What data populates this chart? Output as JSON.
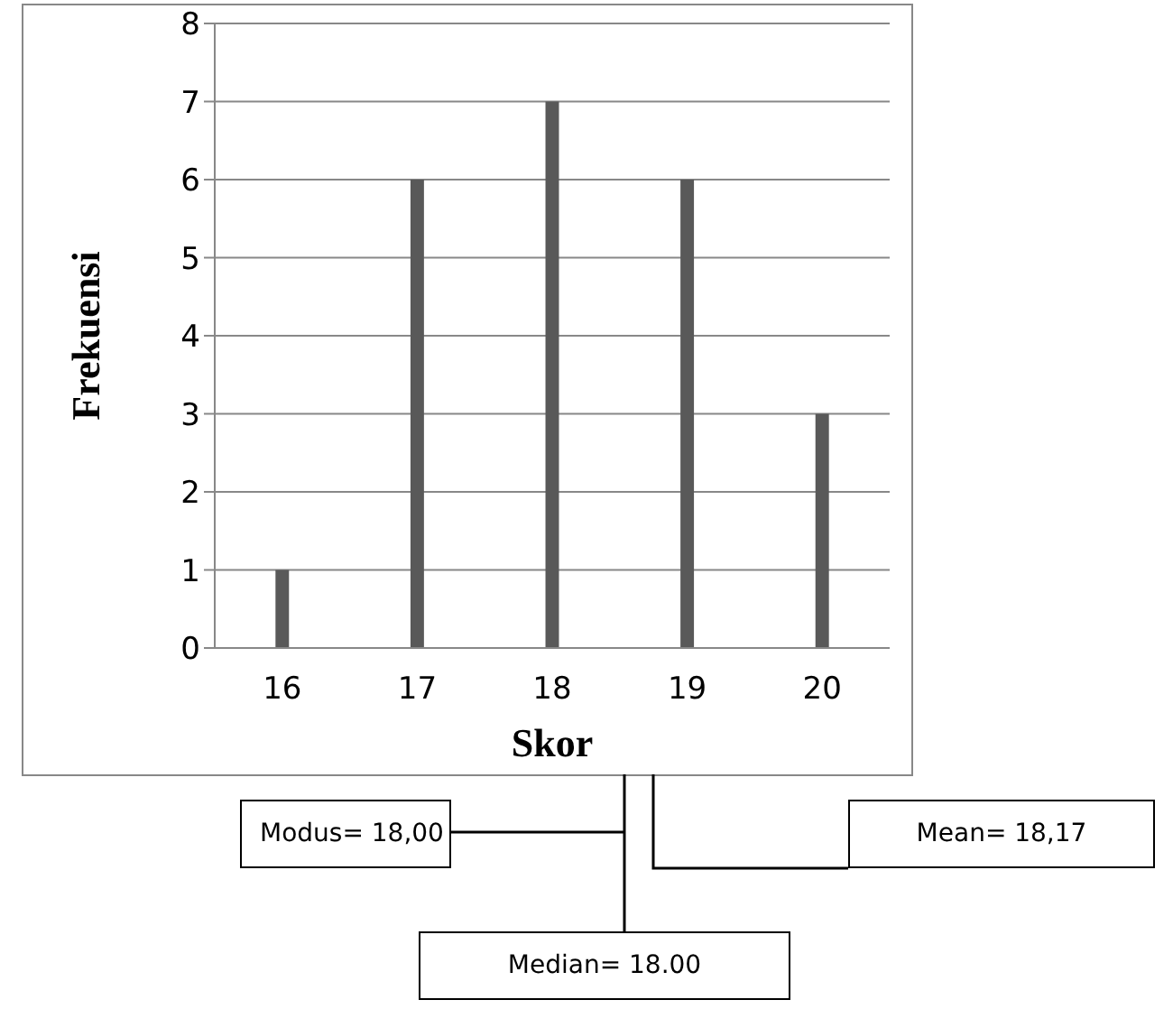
{
  "chart_data": {
    "type": "bar",
    "xlabel": "Skor",
    "ylabel": "Frekuensi",
    "categories": [
      "16",
      "17",
      "18",
      "19",
      "20"
    ],
    "values": [
      1,
      6,
      7,
      6,
      3
    ],
    "color": "#595959",
    "ylim": [
      0,
      8
    ],
    "yticks": [
      0,
      1,
      2,
      3,
      4,
      5,
      6,
      7,
      8
    ],
    "grid": "y",
    "annotations": [
      "Modus= 18,00",
      "Median= 18.00",
      "Mean= 18,17"
    ]
  }
}
